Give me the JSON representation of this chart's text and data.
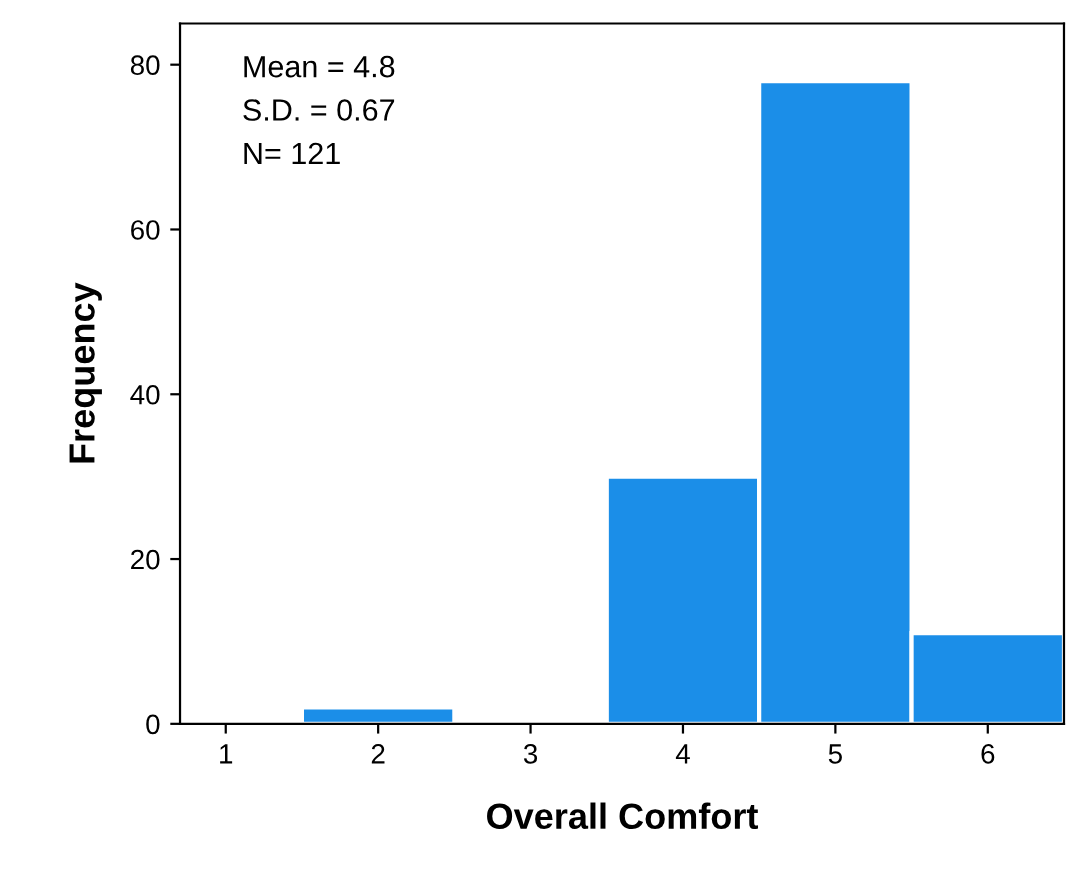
{
  "chart_data": {
    "type": "histogram",
    "xlabel": "Overall Comfort",
    "ylabel": "Frequency",
    "bins": [
      0.5,
      1.5,
      2.5,
      3.5,
      4.5,
      5.5,
      6.5
    ],
    "values": [
      0,
      2,
      0,
      30,
      78,
      11
    ],
    "color": "#1b8ee8",
    "xlim": [
      0.7,
      6.5
    ],
    "xticks": [
      1,
      2,
      3,
      4,
      5,
      6
    ],
    "ylim": [
      0,
      85
    ],
    "yticks": [
      0,
      20,
      40,
      60,
      80
    ],
    "grid": false,
    "annotations": [
      "Mean = 4.8",
      "S.D. = 0.67",
      "N= 121"
    ]
  }
}
